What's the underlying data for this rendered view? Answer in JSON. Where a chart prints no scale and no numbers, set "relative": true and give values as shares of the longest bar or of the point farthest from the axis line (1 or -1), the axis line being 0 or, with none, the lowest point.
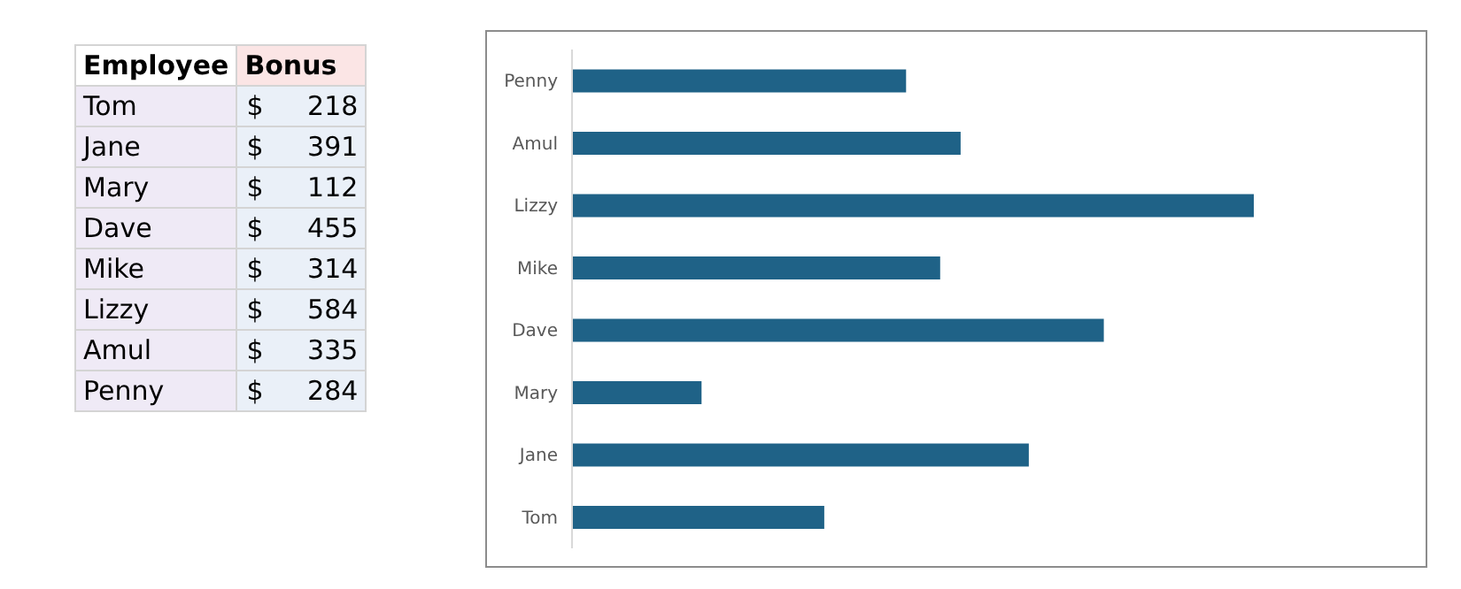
{
  "chart_data": [
    {
      "type": "other",
      "annotations": [
        "Employee",
        "Bonus"
      ],
      "categories": [
        "Tom",
        "Jane",
        "Mary",
        "Dave",
        "Mike",
        "Lizzy",
        "Amul",
        "Penny"
      ],
      "value_labels": [
        "$ 218",
        "$ 391",
        "$ 112",
        "$ 455",
        "$ 314",
        "$ 584",
        "$ 335",
        "$ 284"
      ]
    },
    {
      "type": "bar",
      "orientation": "horizontal",
      "relative": true,
      "categories": [
        "Penny",
        "Amul",
        "Lizzy",
        "Mike",
        "Dave",
        "Mary",
        "Jane",
        "Tom"
      ],
      "values": [
        0.49,
        0.57,
        1,
        0.54,
        0.78,
        0.19,
        0.67,
        0.37
      ],
      "color": "#1f6287",
      "grid": false,
      "legend": false
    }
  ]
}
